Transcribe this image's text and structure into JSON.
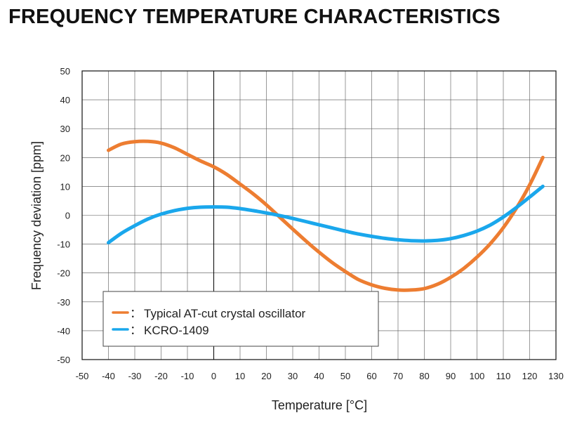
{
  "page": {
    "title": "FREQUENCY TEMPERATURE CHARACTERISTICS"
  },
  "chart_data": {
    "type": "line",
    "title": "FREQUENCY TEMPERATURE CHARACTERISTICS",
    "xlabel": "Temperature [°C]",
    "ylabel": "Frequency deviation [ppm]",
    "xlim": [
      -50,
      130
    ],
    "ylim": [
      -50,
      50
    ],
    "xticks": [
      -50,
      -40,
      -30,
      -20,
      -10,
      0,
      10,
      20,
      30,
      40,
      50,
      60,
      70,
      80,
      90,
      100,
      110,
      120,
      130
    ],
    "yticks": [
      -50,
      -40,
      -30,
      -20,
      -10,
      0,
      10,
      20,
      30,
      40,
      50
    ],
    "xtick_labels": [
      "-50",
      "-40",
      "-30",
      "-20",
      "-10",
      "0",
      "10",
      "20",
      "30",
      "40",
      "50",
      "60",
      "70",
      "80",
      "90",
      "100",
      "110",
      "120",
      "130"
    ],
    "ytick_labels": [
      "-50",
      "-40",
      "-30",
      "-20",
      "-10",
      "0",
      "10",
      "20",
      "30",
      "40",
      "50"
    ],
    "grid": true,
    "legend_position": "bottom-left",
    "legend_separator": "：",
    "series": [
      {
        "name": "Typical AT-cut crystal oscillator",
        "color": "#ED7D31",
        "x": [
          -40,
          -35,
          -30,
          -25,
          -20,
          -15,
          -10,
          -5,
          0,
          5,
          10,
          15,
          20,
          25,
          30,
          35,
          40,
          45,
          50,
          55,
          60,
          65,
          70,
          75,
          80,
          85,
          90,
          95,
          100,
          105,
          110,
          115,
          120,
          125
        ],
        "y": [
          22.5,
          24.7,
          25.5,
          25.6,
          25.0,
          23.4,
          21.1,
          18.8,
          16.8,
          14.1,
          10.8,
          7.4,
          3.6,
          -0.6,
          -4.8,
          -8.9,
          -12.8,
          -16.4,
          -19.5,
          -22.3,
          -24.1,
          -25.3,
          -25.9,
          -25.9,
          -25.4,
          -23.9,
          -21.5,
          -18.4,
          -14.5,
          -9.9,
          -4.3,
          2.5,
          10.5,
          20.0
        ]
      },
      {
        "name": "KCRO-1409",
        "color": "#1AA7EC",
        "x": [
          -40,
          -35,
          -30,
          -25,
          -20,
          -15,
          -10,
          -5,
          0,
          5,
          10,
          15,
          20,
          25,
          30,
          35,
          40,
          45,
          50,
          55,
          60,
          65,
          70,
          75,
          80,
          85,
          90,
          95,
          100,
          105,
          110,
          115,
          120,
          125
        ],
        "y": [
          -9.5,
          -6.2,
          -3.6,
          -1.3,
          0.4,
          1.6,
          2.4,
          2.8,
          2.9,
          2.8,
          2.3,
          1.6,
          0.8,
          -0.1,
          -1.1,
          -2.2,
          -3.3,
          -4.4,
          -5.5,
          -6.5,
          -7.3,
          -8.0,
          -8.5,
          -8.8,
          -8.9,
          -8.7,
          -8.1,
          -7.0,
          -5.5,
          -3.4,
          -0.6,
          2.7,
          6.3,
          10.0
        ]
      }
    ]
  }
}
